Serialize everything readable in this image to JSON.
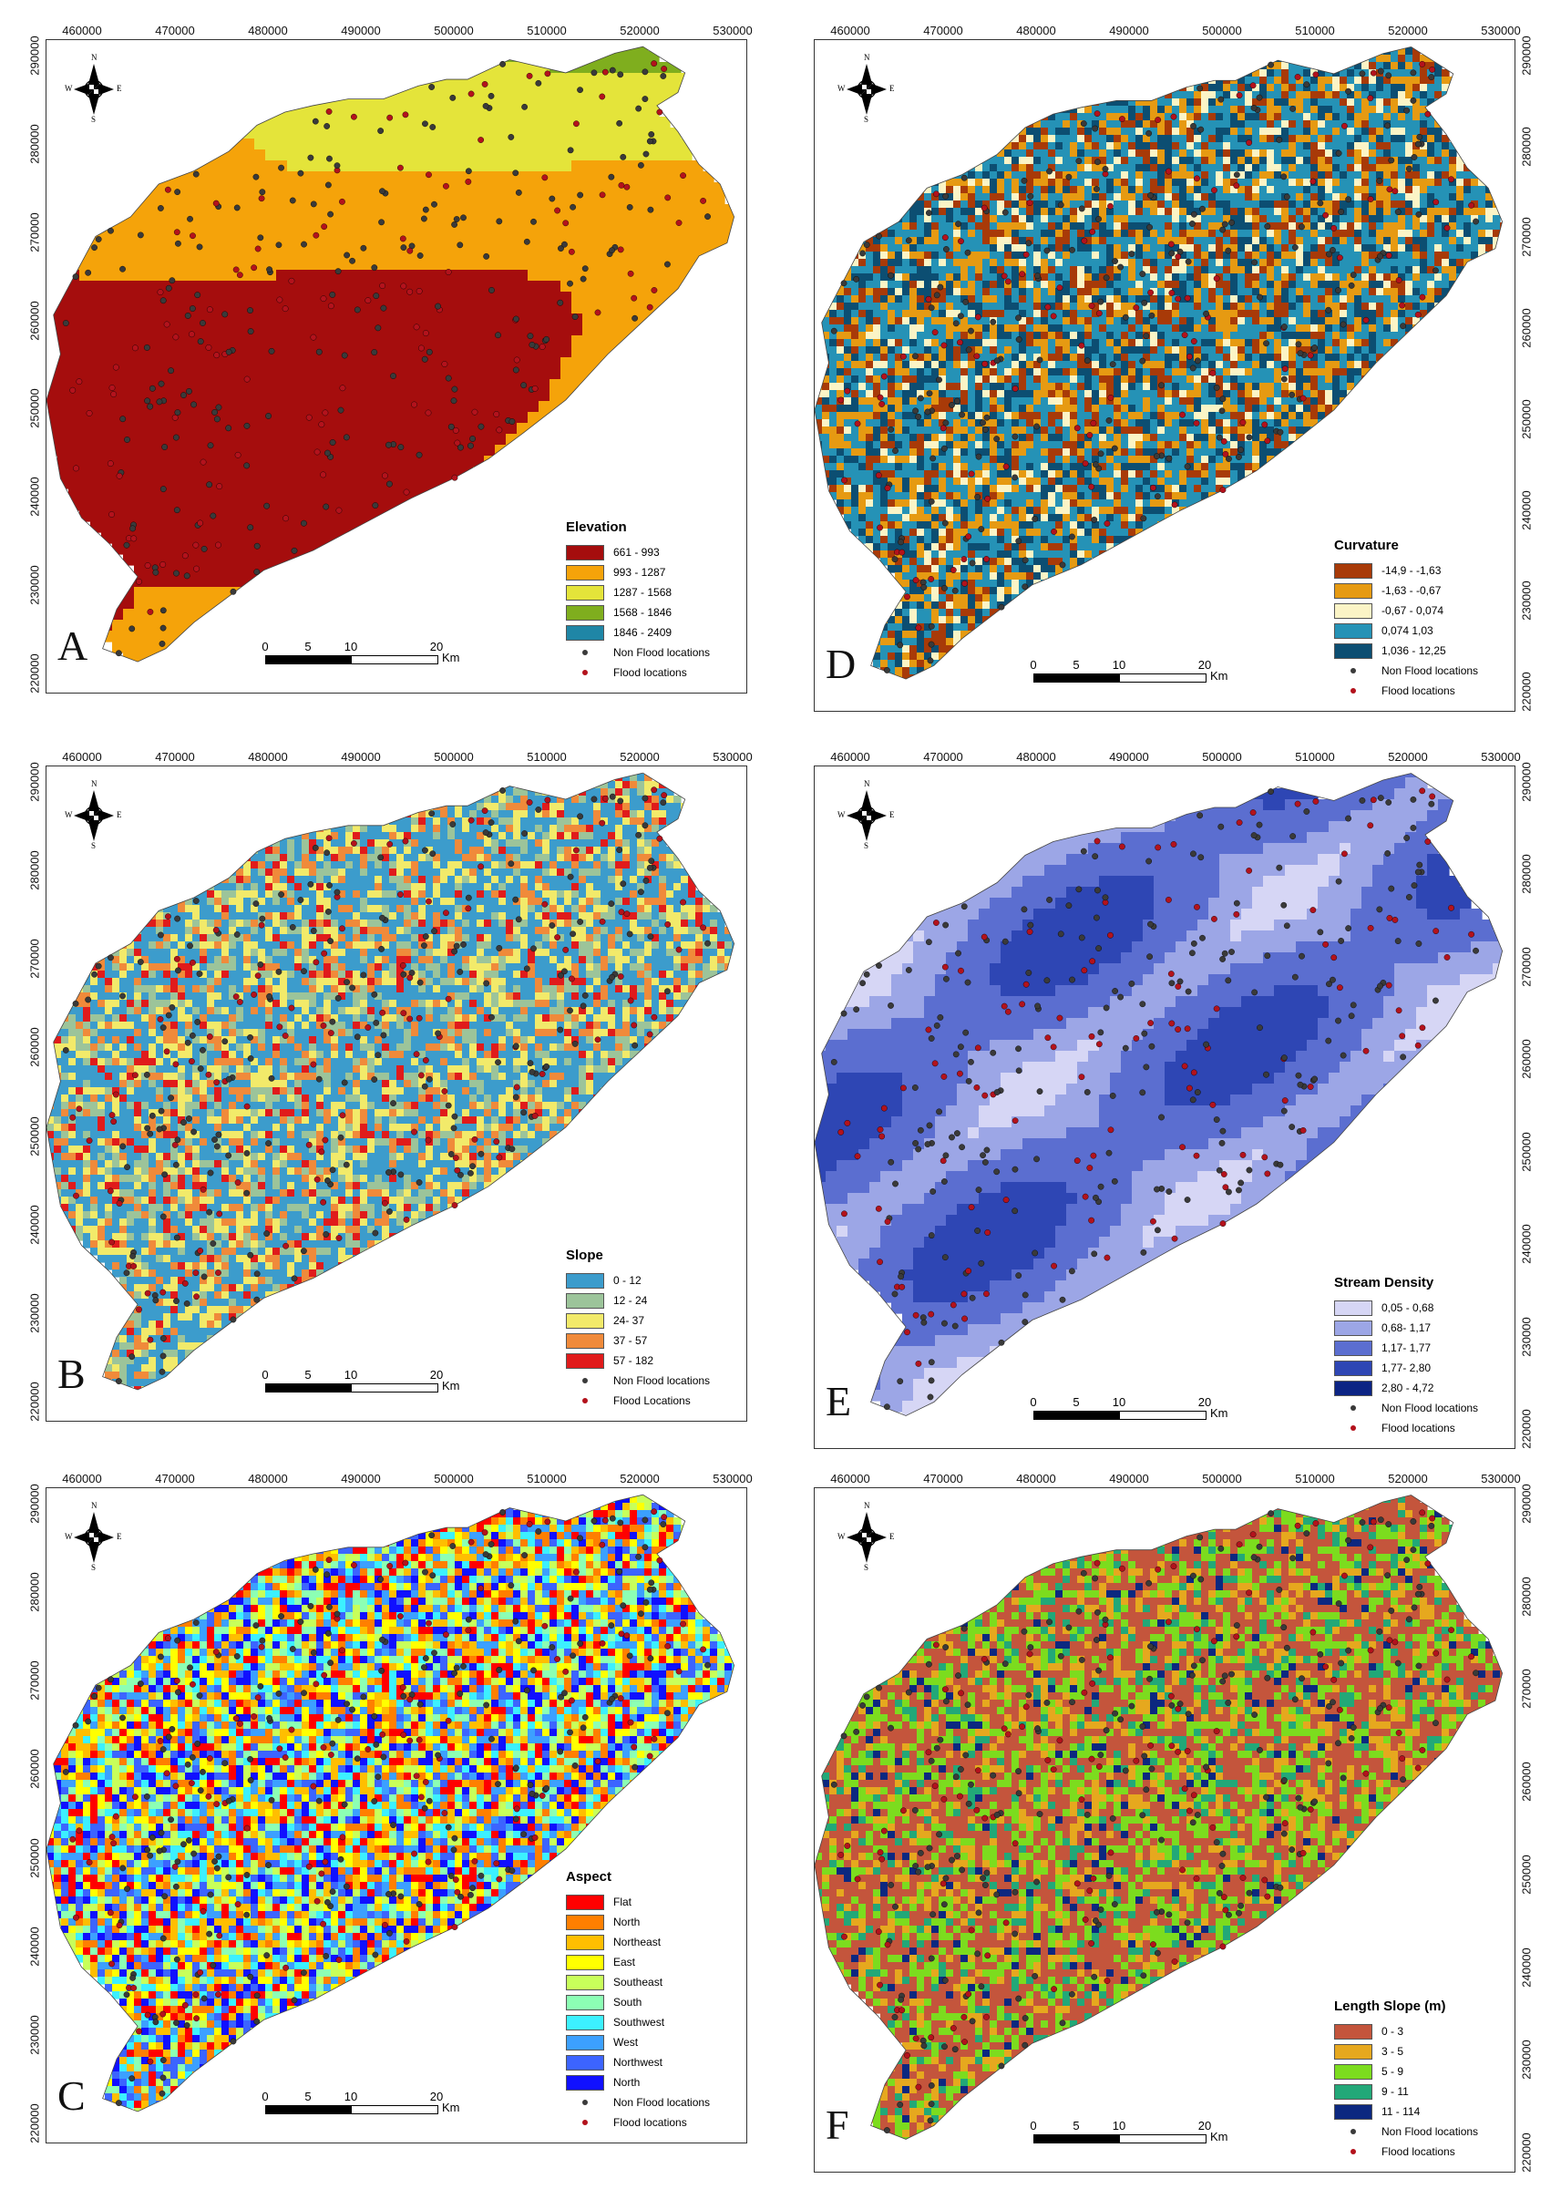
{
  "axes": {
    "x_ticks": [
      "460000",
      "470000",
      "480000",
      "490000",
      "500000",
      "510000",
      "520000",
      "530000"
    ],
    "y_ticks": [
      "290000",
      "280000",
      "270000",
      "260000",
      "250000",
      "240000",
      "230000",
      "220000"
    ]
  },
  "compass": {
    "n": "N",
    "s": "S",
    "e": "E",
    "w": "W"
  },
  "scale_bar": {
    "labels": [
      "0",
      "5",
      "10",
      "20"
    ],
    "unit": "Km"
  },
  "point_symbols": {
    "non_flood_color": "#3a3a3a",
    "flood_color": "#b3121c"
  },
  "panels": [
    {
      "id": "A",
      "letter": "A",
      "legend_title": "Elevation",
      "classes": [
        {
          "label": "661 - 993",
          "color": "#a50d0d"
        },
        {
          "label": "993 - 1287",
          "color": "#f5a30a"
        },
        {
          "label": "1287 - 1568",
          "color": "#e4e43a"
        },
        {
          "label": "1568 - 1846",
          "color": "#7fae1e"
        },
        {
          "label": "1846 - 2409",
          "color": "#1f86a6"
        }
      ],
      "non_flood_label": "Non Flood locations",
      "flood_label": "Flood locations"
    },
    {
      "id": "B",
      "letter": "B",
      "legend_title": "Slope",
      "classes": [
        {
          "label": "0 - 12",
          "color": "#3c9ccc"
        },
        {
          "label": "12 - 24",
          "color": "#9cc49a"
        },
        {
          "label": "24- 37",
          "color": "#f2ea6a"
        },
        {
          "label": "37 - 57",
          "color": "#f08a3a"
        },
        {
          "label": "57 - 182",
          "color": "#e01b1b"
        }
      ],
      "non_flood_label": "Non Flood locations",
      "flood_label": "Flood Locations"
    },
    {
      "id": "C",
      "letter": "C",
      "legend_title": "Aspect",
      "classes": [
        {
          "label": "Flat",
          "color": "#ff0000"
        },
        {
          "label": "North",
          "color": "#ff7f00"
        },
        {
          "label": "Northeast",
          "color": "#ffbe00"
        },
        {
          "label": "East",
          "color": "#ffff00"
        },
        {
          "label": "Southeast",
          "color": "#c8ff5a"
        },
        {
          "label": "South",
          "color": "#8cffb4"
        },
        {
          "label": "Southwest",
          "color": "#3cf0ff"
        },
        {
          "label": "West",
          "color": "#3ca0ff"
        },
        {
          "label": "Northwest",
          "color": "#3c64ff"
        },
        {
          "label": "North",
          "color": "#1010ff"
        }
      ],
      "non_flood_label": "Non Flood locations",
      "flood_label": "Flood locations"
    },
    {
      "id": "D",
      "letter": "D",
      "legend_title": "Curvature",
      "classes": [
        {
          "label": "-14,9 - -1,63",
          "color": "#a83a08"
        },
        {
          "label": "-1,63 - -0,67",
          "color": "#e69a12"
        },
        {
          "label": "-0,67 - 0,074",
          "color": "#fbf4c6"
        },
        {
          "label": "0,074 1,03",
          "color": "#2592b6"
        },
        {
          "label": "1,036 - 12,25",
          "color": "#0c4e72"
        }
      ],
      "non_flood_label": "Non Flood locations",
      "flood_label": "Flood locations"
    },
    {
      "id": "E",
      "letter": "E",
      "legend_title": "Stream Density",
      "classes": [
        {
          "label": "0,05 - 0,68",
          "color": "#d6d6f5"
        },
        {
          "label": "0,68- 1,17",
          "color": "#9ca6e6"
        },
        {
          "label": "1,17- 1,77",
          "color": "#5b6ed0"
        },
        {
          "label": "1,77- 2,80",
          "color": "#2e46b4"
        },
        {
          "label": "2,80 - 4,72",
          "color": "#0c2484"
        }
      ],
      "non_flood_label": "Non Flood locations",
      "flood_label": "Flood locations"
    },
    {
      "id": "F",
      "letter": "F",
      "legend_title": "Length Slope (m)",
      "classes": [
        {
          "label": "0 - 3",
          "color": "#c4553c"
        },
        {
          "label": "3 - 5",
          "color": "#e6a81e"
        },
        {
          "label": "5 - 9",
          "color": "#7cdc1e"
        },
        {
          "label": "9 - 11",
          "color": "#22a878"
        },
        {
          "label": "11 - 114",
          "color": "#0c2880"
        }
      ],
      "non_flood_label": "Non Flood locations",
      "flood_label": "Flood locations"
    }
  ]
}
